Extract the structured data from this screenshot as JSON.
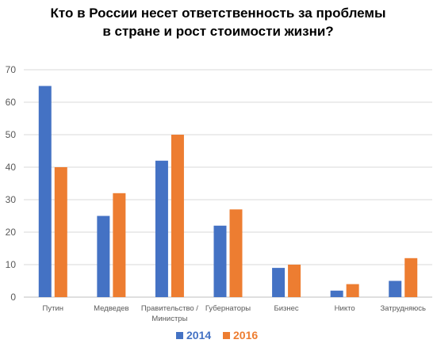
{
  "chart_data": {
    "type": "bar",
    "title_lines": [
      "Кто в России несет ответственность за проблемы",
      "в стране и рост стоимости жизни?"
    ],
    "categories": [
      [
        "Путин"
      ],
      [
        "Медведев"
      ],
      [
        "Правительство /",
        "Министры"
      ],
      [
        "Губернаторы"
      ],
      [
        "Бизнес"
      ],
      [
        "Никто"
      ],
      [
        "Затрудняюсь"
      ]
    ],
    "series": [
      {
        "name": "2014",
        "color": "#4472C4",
        "values": [
          65,
          25,
          42,
          22,
          9,
          2,
          5
        ]
      },
      {
        "name": "2016",
        "color": "#ED7D31",
        "values": [
          40,
          32,
          50,
          27,
          10,
          4,
          12
        ]
      }
    ],
    "yticks": [
      "0",
      "10",
      "20",
      "30",
      "40",
      "50",
      "60",
      "70"
    ],
    "ylim": [
      0,
      70
    ],
    "grid": true,
    "legend_position": "bottom"
  }
}
